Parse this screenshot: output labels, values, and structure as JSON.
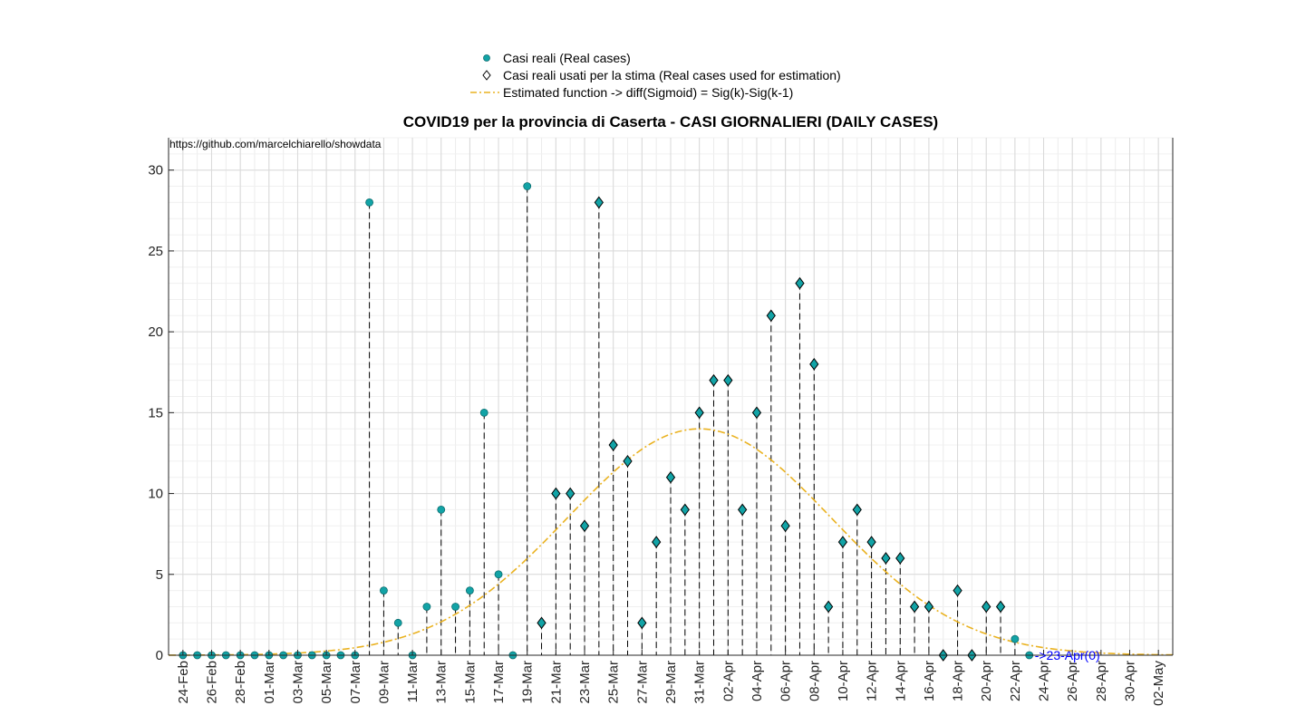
{
  "chart_data": {
    "type": "scatter",
    "title": "COVID19 per la provincia di Caserta - CASI GIORNALIERI (DAILY CASES)",
    "source_text": "https://github.com/marcelchiarello/showdata",
    "xlabel": "",
    "ylabel": "",
    "ylim": [
      0,
      32
    ],
    "y_ticks": [
      0,
      5,
      10,
      15,
      20,
      25,
      30
    ],
    "x_start_date": "24-Feb",
    "x_tick_labels": [
      "24-Feb",
      "26-Feb",
      "28-Feb",
      "01-Mar",
      "03-Mar",
      "05-Mar",
      "07-Mar",
      "09-Mar",
      "11-Mar",
      "13-Mar",
      "15-Mar",
      "17-Mar",
      "19-Mar",
      "21-Mar",
      "23-Mar",
      "25-Mar",
      "27-Mar",
      "29-Mar",
      "31-Mar",
      "02-Apr",
      "04-Apr",
      "06-Apr",
      "08-Apr",
      "10-Apr",
      "12-Apr",
      "14-Apr",
      "16-Apr",
      "18-Apr",
      "20-Apr",
      "22-Apr",
      "24-Apr",
      "26-Apr",
      "28-Apr",
      "30-Apr",
      "02-May"
    ],
    "x_tick_every": 2,
    "x_total_days": 70,
    "grid": true,
    "legend_position": "top-center",
    "annotation": {
      "text": "->23-Apr(0)",
      "x_index": 59,
      "y": 0
    },
    "colors": {
      "real": "#12a3a6",
      "used": "#12a3a6",
      "fit": "#eab220",
      "annotation": "#0000ff"
    },
    "series": [
      {
        "name": "Casi reali (Real cases)",
        "marker": "circle",
        "values": [
          0,
          0,
          0,
          0,
          0,
          0,
          0,
          0,
          0,
          0,
          0,
          0,
          0,
          28,
          4,
          2,
          0,
          3,
          9,
          3,
          4,
          15,
          5,
          0,
          29,
          2,
          10,
          10,
          8,
          28,
          13,
          12,
          2,
          7,
          11,
          9,
          15,
          17,
          17,
          9,
          15,
          21,
          8,
          23,
          18,
          3,
          7,
          9,
          7,
          6,
          6,
          3,
          3,
          0,
          4,
          0,
          3,
          3,
          1,
          0
        ]
      },
      {
        "name": "Casi reali usati per la stima (Real cases used for estimation)",
        "marker": "diamond",
        "start_index": 25,
        "end_index": 57
      },
      {
        "name": "Estimated function -> diff(Sigmoid) = Sig(k)-Sig(k-1)",
        "marker": "dash-dot-line",
        "peak_index": 36,
        "peak_value": 14,
        "sigma_days": 9.2
      }
    ]
  }
}
